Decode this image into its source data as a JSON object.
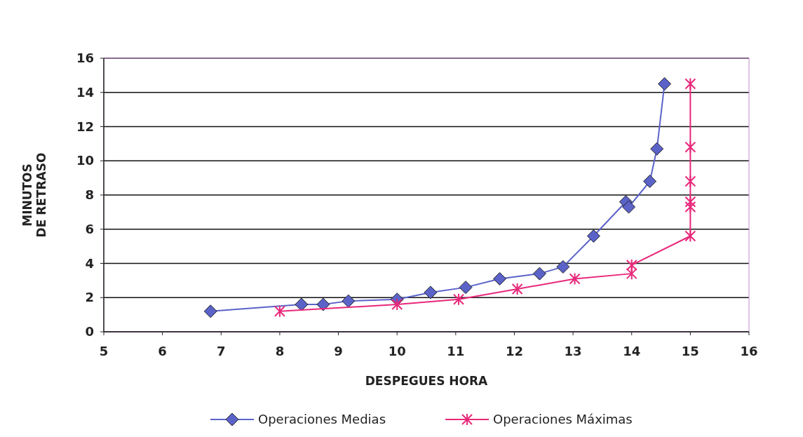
{
  "chart_data": {
    "type": "line",
    "xlabel": "DESPEGUES HORA",
    "ylabel": "MINUTOS\nDE RETRASO",
    "xlim": [
      5,
      16
    ],
    "xticks": [
      5,
      6,
      7,
      8,
      9,
      10,
      11,
      12,
      13,
      14,
      15,
      16
    ],
    "ylim": [
      0,
      16
    ],
    "yticks": [
      0,
      2,
      4,
      6,
      8,
      10,
      12,
      14,
      16
    ],
    "grid": "y",
    "legend": "bottom",
    "series": [
      {
        "name": "Operaciones Medias",
        "color": "#5b63c9",
        "marker": "diamond",
        "x": [
          6.82,
          8.37,
          8.74,
          9.17,
          10.0,
          10.57,
          11.17,
          11.75,
          12.43,
          12.83,
          13.35,
          13.9,
          13.95,
          14.31,
          14.43,
          14.56
        ],
        "values": [
          1.2,
          1.6,
          1.6,
          1.8,
          1.9,
          2.3,
          2.6,
          3.1,
          3.4,
          3.8,
          5.6,
          7.6,
          7.3,
          8.8,
          10.7,
          14.5
        ]
      },
      {
        "name": "Operaciones Máximas",
        "color": "#e8287a",
        "marker": "cross",
        "x": [
          8.0,
          10.0,
          11.05,
          12.05,
          13.03,
          14.0,
          14.0,
          15.0,
          15.0,
          15.0,
          15.0,
          15.0,
          15.0
        ],
        "values": [
          1.2,
          1.6,
          1.9,
          2.5,
          3.1,
          3.4,
          3.9,
          5.6,
          7.3,
          7.6,
          8.8,
          10.8,
          14.5
        ]
      }
    ]
  }
}
